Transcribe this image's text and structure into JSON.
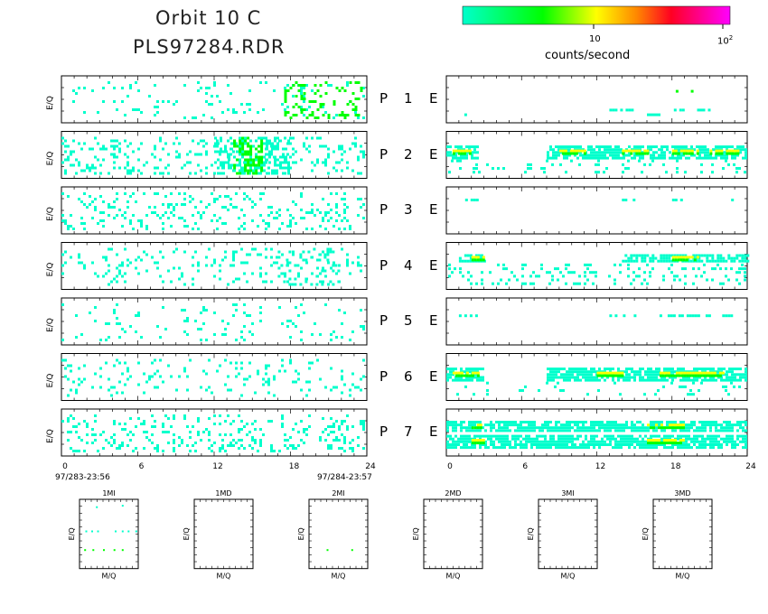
{
  "title": {
    "line1": "Orbit 10 C",
    "line2": "PLS97284.RDR"
  },
  "colorbar": {
    "tick_1": "10",
    "tick_2": "10",
    "tick_2_exponent": "2",
    "label": "counts/second",
    "colors": [
      "#00ffcc",
      "#00ff00",
      "#ffff00",
      "#ff8800",
      "#ff0033",
      "#ff00ff"
    ]
  },
  "chart_data": [
    {
      "type": "heatmap",
      "name_group": "P-detectors",
      "ylabel": "E/Q",
      "x_ticks": [
        "0",
        "6",
        "12",
        "18",
        "24"
      ],
      "xlim": [
        0,
        24
      ],
      "time_start": "97/283-23:56",
      "time_end": "97/284-23:57",
      "panels": [
        {
          "label": "P",
          "index": "1",
          "activity": [
            [
              0,
              24,
              0.12,
              0.0
            ]
          ],
          "hotspots": [
            [
              17.5,
              24,
              0.35
            ]
          ]
        },
        {
          "label": "P",
          "index": "2",
          "activity": [
            [
              0,
              24,
              0.3,
              0.0
            ],
            [
              12,
              18,
              0.6,
              0.0
            ]
          ],
          "hotspots": [
            [
              13.5,
              16,
              0.9
            ]
          ]
        },
        {
          "label": "P",
          "index": "3",
          "activity": [
            [
              0,
              24,
              0.25,
              0.0
            ]
          ],
          "hotspots": []
        },
        {
          "label": "P",
          "index": "4",
          "activity": [
            [
              0,
              24,
              0.2,
              0.0
            ],
            [
              17,
              22,
              0.4,
              0.0
            ]
          ],
          "hotspots": []
        },
        {
          "label": "P",
          "index": "5",
          "activity": [
            [
              0,
              24,
              0.1,
              0.0
            ]
          ],
          "hotspots": []
        },
        {
          "label": "P",
          "index": "6",
          "activity": [
            [
              0,
              24,
              0.18,
              0.0
            ]
          ],
          "hotspots": []
        },
        {
          "label": "P",
          "index": "7",
          "activity": [
            [
              0,
              24,
              0.3,
              0.0
            ]
          ],
          "hotspots": []
        }
      ]
    },
    {
      "type": "heatmap",
      "name_group": "E-detectors",
      "x_ticks": [
        "0",
        "6",
        "12",
        "18",
        "24"
      ],
      "xlim": [
        0,
        24
      ],
      "panels": [
        {
          "label": "E",
          "sparse": [
            [
              13,
              15,
              0.7
            ],
            [
              17.5,
              19,
              0.7
            ],
            [
              20,
              21,
              0.7
            ],
            [
              1,
              1.5,
              0.8
            ],
            [
              16,
              17,
              0.8
            ]
          ],
          "band_rows": [],
          "green_spots": [
            [
              18.3,
              0.3
            ],
            [
              19.5,
              0.3
            ]
          ]
        },
        {
          "label": "E",
          "band_rows": [
            [
              0.3,
              0.55
            ]
          ],
          "band_segments": [
            [
              0,
              2.5
            ],
            [
              8,
              24
            ]
          ],
          "yellow_segments": [
            [
              0.5,
              2.0
            ],
            [
              9,
              11
            ],
            [
              14,
              16
            ],
            [
              18,
              20
            ],
            [
              21,
              23.5
            ]
          ],
          "scatter_below": 0.2
        },
        {
          "label": "E",
          "sparse": [
            [
              1.5,
              2.5,
              0.25
            ],
            [
              14,
              15,
              0.25
            ],
            [
              18,
              19,
              0.25
            ],
            [
              22.5,
              23,
              0.25
            ]
          ],
          "band_rows": []
        },
        {
          "label": "E",
          "band_rows": [
            [
              0.25,
              0.4
            ]
          ],
          "band_segments": [
            [
              1,
              3
            ],
            [
              14,
              24
            ]
          ],
          "yellow_segments": [
            [
              2,
              3
            ],
            [
              18,
              20
            ]
          ],
          "scatter_below": 0.35
        },
        {
          "label": "E",
          "sparse": [
            [
              1,
              2.5,
              0.35
            ],
            [
              13,
              15,
              0.35
            ],
            [
              17,
              21,
              0.35
            ],
            [
              22,
              23,
              0.35
            ]
          ],
          "band_rows": []
        },
        {
          "label": "E",
          "band_rows": [
            [
              0.3,
              0.55
            ]
          ],
          "band_segments": [
            [
              0,
              3
            ],
            [
              8,
              24
            ]
          ],
          "yellow_segments": [
            [
              0.5,
              2.5
            ],
            [
              12,
              14
            ],
            [
              17,
              22
            ]
          ],
          "scatter_below": 0.15
        },
        {
          "label": "E",
          "band_rows": [
            [
              0.25,
              0.45
            ],
            [
              0.55,
              0.8
            ]
          ],
          "band_segments": [
            [
              0,
              24
            ]
          ],
          "yellow_segments": [
            [
              2,
              3
            ],
            [
              16,
              19
            ]
          ],
          "scatter_below": 0.0
        }
      ]
    },
    {
      "type": "scatter",
      "name_group": "mass-panels",
      "xlabel": "M/Q",
      "ylabel": "E/Q",
      "panels": [
        {
          "title": "1MI",
          "points": [
            [
              0.28,
              0.1
            ],
            [
              0.72,
              0.08
            ],
            [
              0.1,
              0.45
            ],
            [
              0.2,
              0.45
            ],
            [
              0.3,
              0.45
            ],
            [
              0.6,
              0.45
            ],
            [
              0.72,
              0.45
            ],
            [
              0.82,
              0.45
            ],
            [
              0.95,
              0.45
            ],
            [
              0.08,
              0.72
            ],
            [
              0.22,
              0.72
            ],
            [
              0.4,
              0.72
            ],
            [
              0.58,
              0.72
            ],
            [
              0.72,
              0.72
            ]
          ],
          "green": [
            [
              0.08,
              0.72
            ],
            [
              0.22,
              0.72
            ],
            [
              0.4,
              0.72
            ],
            [
              0.58,
              0.72
            ],
            [
              0.72,
              0.72
            ]
          ]
        },
        {
          "title": "1MD",
          "points": [],
          "green": []
        },
        {
          "title": "2MI",
          "points": [
            [
              0.3,
              0.72
            ],
            [
              0.72,
              0.72
            ]
          ],
          "green": [
            [
              0.3,
              0.72
            ],
            [
              0.72,
              0.72
            ]
          ]
        },
        {
          "title": "2MD",
          "points": [],
          "green": []
        },
        {
          "title": "3MI",
          "points": [],
          "green": []
        },
        {
          "title": "3MD",
          "points": [],
          "green": []
        }
      ]
    }
  ]
}
